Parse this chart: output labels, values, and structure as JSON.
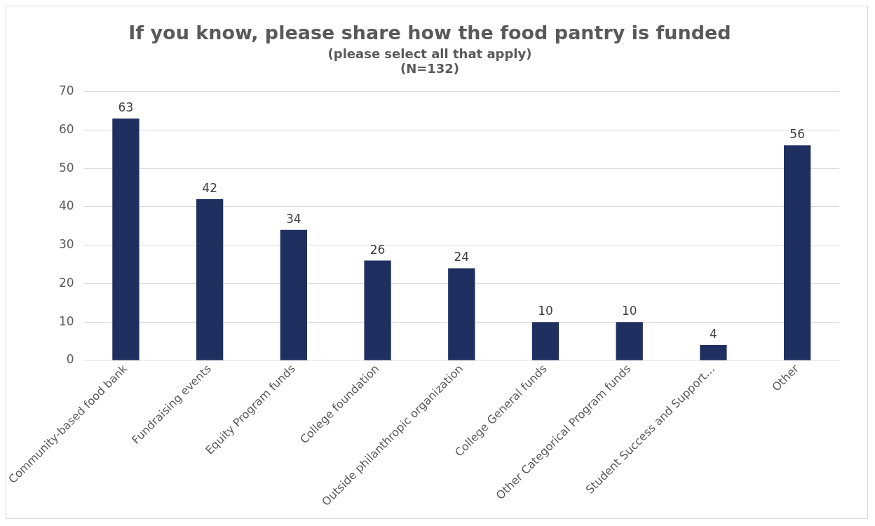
{
  "chart_data": {
    "type": "bar",
    "title": "If you know, please share how the food pantry is funded",
    "subtitle": "(please select all that apply)",
    "annotations": [
      "(N=132)"
    ],
    "categories": [
      "Community-based food bank",
      "Fundraising events",
      "Equity Program funds",
      "College foundation",
      "Outside philanthropic organization",
      "College General funds",
      "Other Categorical Program funds",
      "Student Success and Support…",
      "Other"
    ],
    "values": [
      63,
      42,
      34,
      26,
      24,
      10,
      10,
      4,
      56
    ],
    "color": "#1f3060",
    "ylim": [
      0,
      70
    ],
    "yticks": [
      0,
      10,
      20,
      30,
      40,
      50,
      60,
      70
    ],
    "grid": "y",
    "data_labels": true,
    "legend": false
  }
}
